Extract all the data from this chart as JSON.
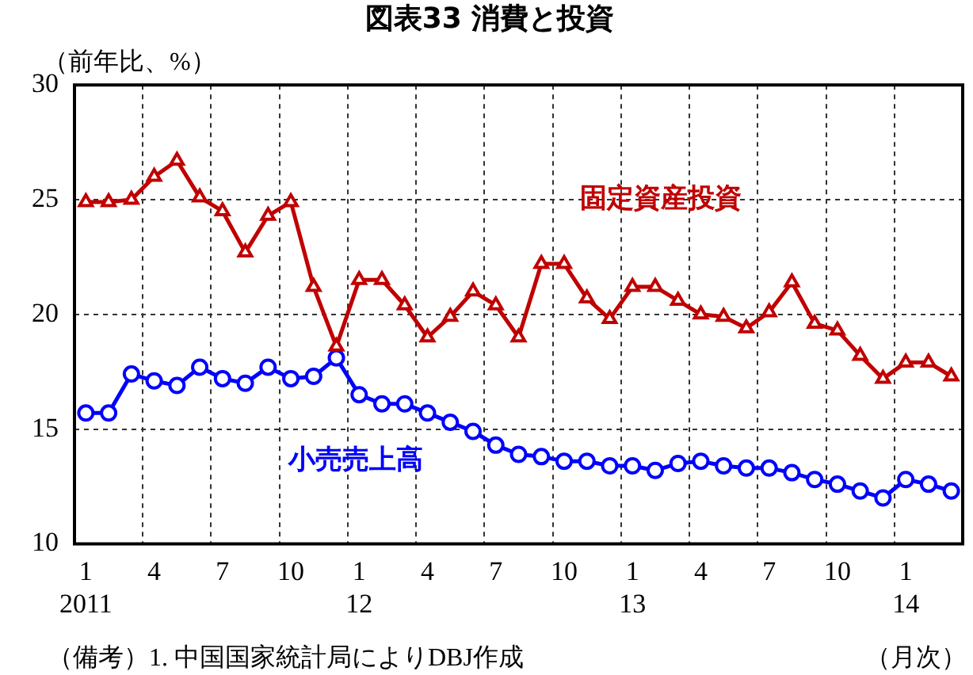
{
  "chart_data": {
    "type": "line",
    "title": "図表33 消費と投資",
    "ylabel": "（前年比、%）",
    "xlabel": "（月次）",
    "categories": [
      "1\n2011",
      null,
      null,
      "4",
      null,
      null,
      "7",
      null,
      null,
      "10",
      null,
      null,
      "1\n12",
      null,
      null,
      "4",
      null,
      null,
      "7",
      null,
      null,
      "10",
      null,
      null,
      "1\n13",
      null,
      null,
      "4",
      null,
      null,
      "7",
      null,
      null,
      "10",
      null,
      null,
      "1\n14",
      null,
      null
    ],
    "series": [
      {
        "name": "固定資産投資",
        "color": "#c00000",
        "marker": "triangle",
        "values": [
          24.9,
          24.9,
          25.0,
          26.0,
          26.7,
          25.1,
          24.5,
          22.7,
          24.3,
          24.9,
          21.2,
          18.6,
          21.5,
          21.5,
          20.4,
          19.0,
          19.9,
          21.0,
          20.4,
          19.0,
          22.2,
          22.2,
          20.7,
          19.8,
          21.2,
          21.2,
          20.6,
          20.0,
          19.9,
          19.4,
          20.1,
          21.4,
          19.6,
          19.3,
          18.2,
          17.2,
          17.9,
          17.9,
          17.3
        ]
      },
      {
        "name": "小売売上高",
        "color": "#0000ff",
        "marker": "circle",
        "values": [
          15.7,
          15.7,
          17.4,
          17.1,
          16.9,
          17.7,
          17.2,
          17.0,
          17.7,
          17.2,
          17.3,
          18.1,
          16.5,
          16.1,
          16.1,
          15.7,
          15.3,
          14.9,
          14.3,
          13.9,
          13.8,
          13.6,
          13.6,
          13.4,
          13.4,
          13.2,
          13.5,
          13.6,
          13.4,
          13.3,
          13.3,
          13.1,
          12.8,
          12.6,
          12.3,
          12.0,
          12.8,
          12.6,
          12.3
        ]
      }
    ],
    "ylim": [
      10,
      30
    ],
    "yticks": [
      10,
      15,
      20,
      25,
      30
    ],
    "grid": true,
    "legend": false,
    "line_style": "solid",
    "annotations": [
      "（備考）1. 中国国家統計局によりDBJ作成"
    ]
  }
}
